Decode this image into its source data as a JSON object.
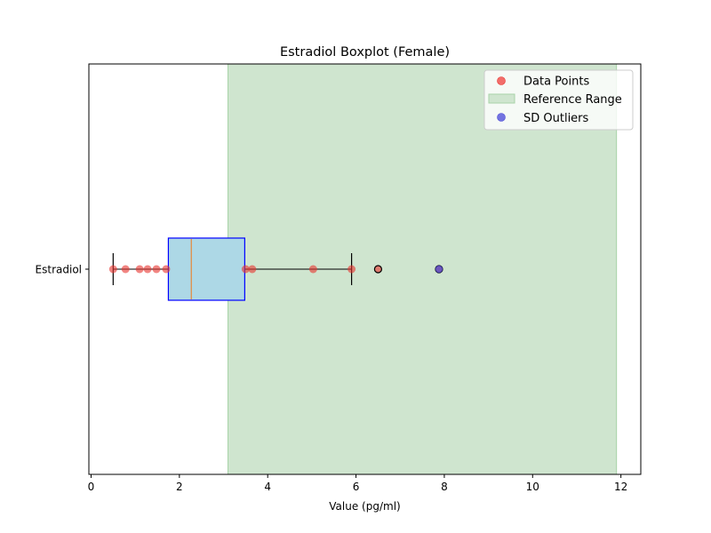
{
  "chart_data": {
    "type": "boxplot",
    "title": "Estradiol Boxplot (Female)",
    "xlabel": "Value (pg/ml)",
    "ylabel": "",
    "category": "Estradiol",
    "xlim": [
      -0.05,
      12.45
    ],
    "xticks": [
      0,
      2,
      4,
      6,
      8,
      10,
      12
    ],
    "grid": false,
    "box": {
      "whisker_low": 0.5,
      "q1": 1.75,
      "median": 2.27,
      "q3": 3.48,
      "whisker_high": 5.9
    },
    "fliers": [
      6.5,
      7.88
    ],
    "data_points": [
      0.5,
      0.78,
      1.1,
      1.28,
      1.48,
      1.7,
      3.5,
      3.65,
      5.03,
      5.9,
      6.5,
      7.88
    ],
    "sd_outliers": [
      7.88
    ],
    "reference_range": [
      3.1,
      11.9
    ],
    "legend": {
      "position": "top-right",
      "entries": [
        "Data Points",
        "Reference Range",
        "SD Outliers"
      ]
    },
    "colors": {
      "box_fill": "#add8e6",
      "box_edge": "#0000ff",
      "median": "#e6883a",
      "data_points": "#e8332f",
      "reference_range": "#cfe5cf",
      "reference_edge": "#a8d3a8",
      "sd_outliers": "#4b4bd6"
    }
  }
}
